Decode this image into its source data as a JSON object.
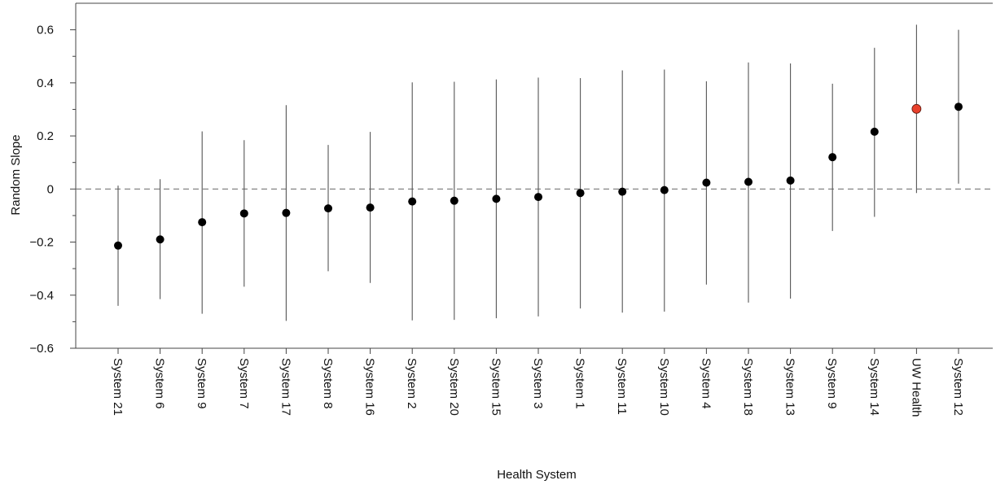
{
  "chart_data": {
    "type": "scatter",
    "xlabel": "Health System",
    "ylabel": "Random Slope",
    "ylim": [
      -0.6,
      0.7
    ],
    "yticks": [
      -0.6,
      -0.4,
      -0.2,
      0,
      0.2,
      0.4,
      0.6
    ],
    "ytick_labels": [
      "−0.6",
      "−0.4",
      "−0.2",
      "0",
      "0.2",
      "0.4",
      "0.6"
    ],
    "reference_line": 0,
    "grid": false,
    "categories": [
      "System 21",
      "System 6",
      "System 9",
      "System 7",
      "System 17",
      "System 8",
      "System 16",
      "System 2",
      "System 20",
      "System 15",
      "System 3",
      "System 1",
      "System 11",
      "System 10",
      "System 4",
      "System 18",
      "System 13",
      "System 9",
      "System 14",
      "UW Health",
      "System 12"
    ],
    "estimates": [
      -0.213,
      -0.19,
      -0.125,
      -0.092,
      -0.09,
      -0.073,
      -0.07,
      -0.047,
      -0.044,
      -0.037,
      -0.03,
      -0.015,
      -0.01,
      -0.004,
      0.024,
      0.027,
      0.032,
      0.12,
      0.216,
      0.302,
      0.31
    ],
    "lower": [
      -0.44,
      -0.415,
      -0.47,
      -0.368,
      -0.497,
      -0.31,
      -0.354,
      -0.495,
      -0.493,
      -0.487,
      -0.48,
      -0.45,
      -0.466,
      -0.462,
      -0.36,
      -0.428,
      -0.413,
      -0.158,
      -0.105,
      -0.015,
      0.02
    ],
    "upper": [
      0.013,
      0.037,
      0.217,
      0.184,
      0.316,
      0.166,
      0.215,
      0.402,
      0.404,
      0.413,
      0.42,
      0.418,
      0.447,
      0.45,
      0.406,
      0.477,
      0.473,
      0.397,
      0.532,
      0.619,
      0.6
    ],
    "highlight": "UW Health",
    "point_color": "#000000",
    "highlight_color": "#e8402b",
    "interval_color": "#555555"
  }
}
